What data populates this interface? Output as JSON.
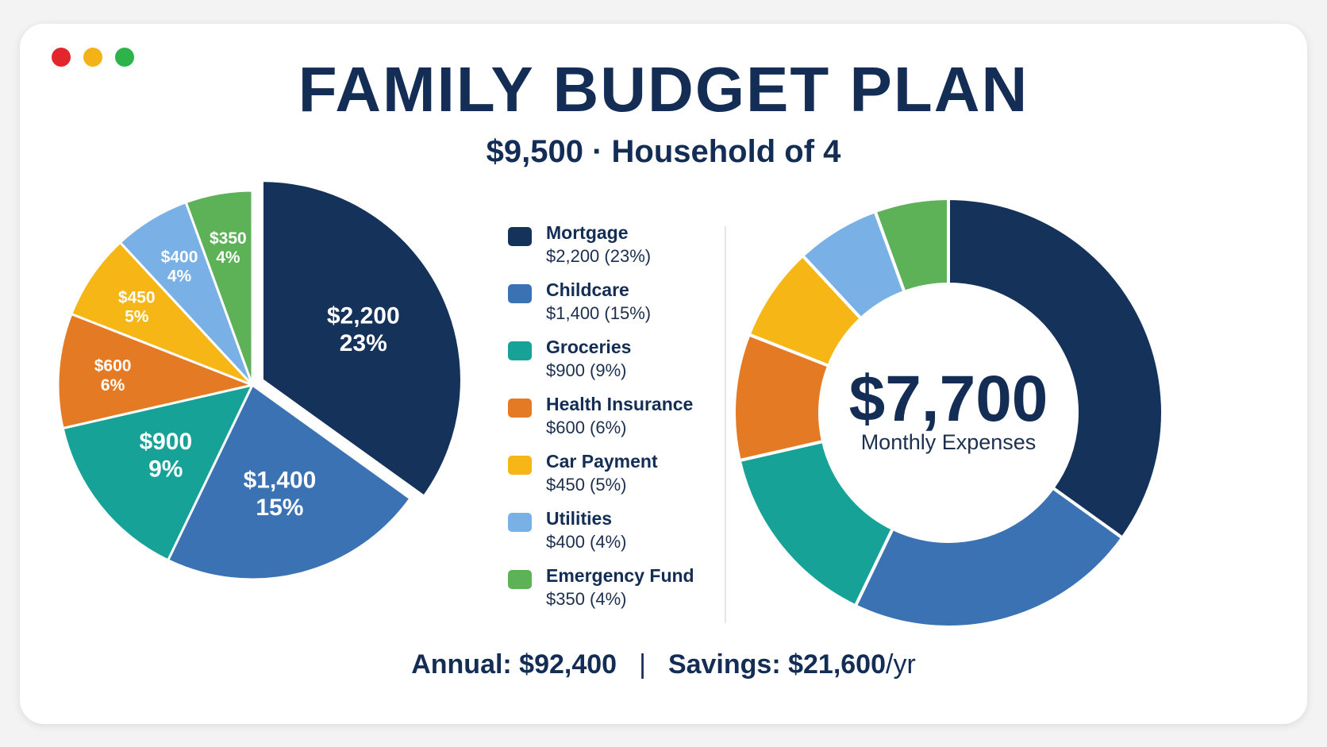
{
  "window": {
    "dots": [
      {
        "name": "close-dot",
        "color": "#e2262b"
      },
      {
        "name": "minimize-dot",
        "color": "#f3b316"
      },
      {
        "name": "maximize-dot",
        "color": "#2db34a"
      }
    ]
  },
  "header": {
    "title": "FAMILY BUDGET PLAN",
    "subtitle": "$9,500 · Household of 4"
  },
  "donut_center": {
    "amount": "$7,700",
    "caption": "Monthly Expenses"
  },
  "footer": {
    "annual": "Annual: $92,400",
    "separator": "|",
    "savings": "Savings: $21,600",
    "savings_unit": "/yr"
  },
  "chart_data": [
    {
      "type": "pie",
      "exploded": "Mortgage",
      "categories": [
        "Mortgage",
        "Childcare",
        "Groceries",
        "Health Insurance",
        "Car Payment",
        "Utilities",
        "Emergency Fund"
      ],
      "values": [
        2200,
        1400,
        900,
        600,
        450,
        400,
        350
      ],
      "percents": [
        23,
        15,
        9,
        6,
        5,
        4,
        4
      ],
      "value_labels": [
        "$2,200",
        "$1,400",
        "$900",
        "$600",
        "$450",
        "$400",
        "$350"
      ],
      "percent_labels": [
        "23%",
        "15%",
        "9%",
        "6%",
        "5%",
        "4%",
        "4%"
      ],
      "legend": [
        {
          "name": "Mortgage",
          "value": "$2,200 (23%)"
        },
        {
          "name": "Childcare",
          "value": "$1,400 (15%)"
        },
        {
          "name": "Groceries",
          "value": "$900 (9%)"
        },
        {
          "name": "Health Insurance",
          "value": "$600 (6%)"
        },
        {
          "name": "Car Payment",
          "value": "$450 (5%)"
        },
        {
          "name": "Utilities",
          "value": "$400 (4%)"
        },
        {
          "name": "Emergency Fund",
          "value": "$350 (4%)"
        }
      ],
      "colors": [
        "#15325b",
        "#3a72b3",
        "#17a297",
        "#e57a24",
        "#f5b616",
        "#79b0e6",
        "#5db157"
      ]
    },
    {
      "type": "donut",
      "categories": [
        "Mortgage",
        "Childcare",
        "Groceries",
        "Health Insurance",
        "Car Payment",
        "Utilities",
        "Emergency Fund"
      ],
      "values": [
        2200,
        1400,
        900,
        600,
        450,
        400,
        350
      ],
      "colors": [
        "#15325b",
        "#3a72b3",
        "#17a297",
        "#e57a24",
        "#f5b616",
        "#79b0e6",
        "#5db157"
      ]
    }
  ]
}
